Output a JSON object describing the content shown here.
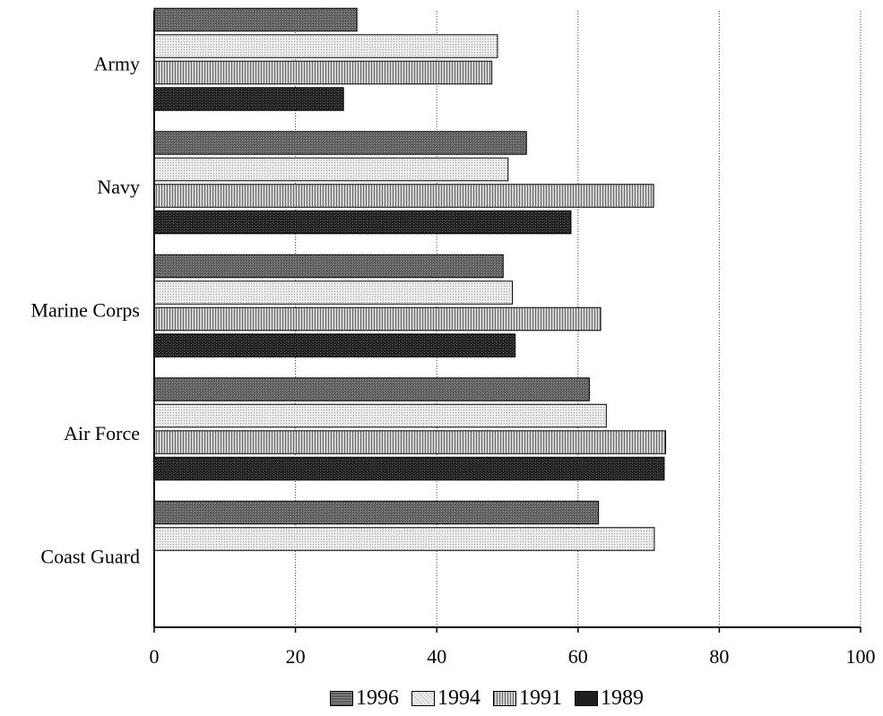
{
  "chart_data": {
    "type": "bar",
    "orientation": "horizontal",
    "title": "",
    "xlabel": "",
    "ylabel": "",
    "xlim": [
      0,
      100
    ],
    "x_ticks": [
      "0",
      "20",
      "40",
      "60",
      "80",
      "100"
    ],
    "grid": "vertical dotted",
    "legend_position": "bottom",
    "categories": [
      "Army",
      "Navy",
      "Marine Corps",
      "Air Force",
      "Coast Guard"
    ],
    "series": [
      {
        "name": "1996",
        "values": [
          28.7,
          52.7,
          49.4,
          61.6,
          62.9
        ],
        "color": "#6b6b6b"
      },
      {
        "name": "1994",
        "values": [
          48.6,
          50.1,
          50.7,
          64.0,
          70.8
        ],
        "color": "#e2e2e2"
      },
      {
        "name": "1991",
        "values": [
          47.8,
          70.7,
          63.2,
          72.4,
          null
        ],
        "color": "#a4a4a4"
      },
      {
        "name": "1989",
        "values": [
          26.8,
          59.0,
          51.1,
          72.2,
          null
        ],
        "color": "#262626"
      }
    ]
  }
}
